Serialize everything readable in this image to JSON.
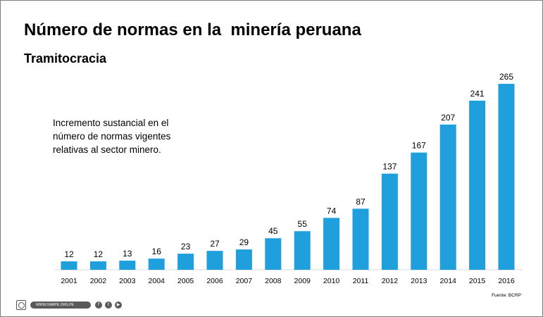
{
  "slide": {
    "title": "Número de normas en la  minería peruana",
    "subtitle": "Tramitocracia",
    "annotation": "Incremento sustancial en el número de normas vigentes relativas al sector minero.",
    "source": "Fuente: BCRP",
    "footer_url": "WWW.SNMPE.ORG.PE",
    "footer_icons": [
      "snmpe-logo-icon",
      "facebook-icon",
      "twitter-icon",
      "youtube-icon"
    ]
  },
  "chart_data": {
    "type": "bar",
    "categories": [
      "2001",
      "2002",
      "2003",
      "2004",
      "2005",
      "2006",
      "2007",
      "2008",
      "2009",
      "2010",
      "2011",
      "2012",
      "2013",
      "2014",
      "2015",
      "2016"
    ],
    "values": [
      12,
      12,
      13,
      16,
      23,
      27,
      29,
      45,
      55,
      74,
      87,
      137,
      167,
      207,
      241,
      265
    ],
    "title": "Número de normas en la  minería peruana",
    "xlabel": "",
    "ylabel": "",
    "ylim": [
      0,
      265
    ],
    "grid": false,
    "data_labels": true,
    "bar_color": "#1f9fdc",
    "axis_color": "#d9d9d9"
  }
}
